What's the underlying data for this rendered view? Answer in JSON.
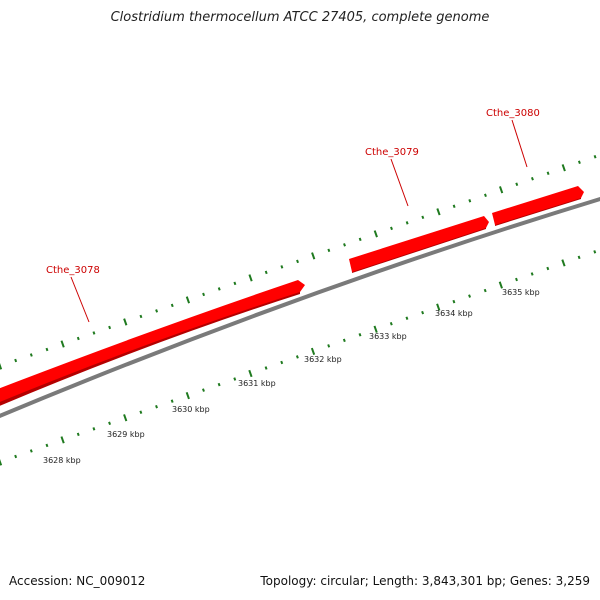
{
  "title": "Clostridium thermocellum ATCC 27405, complete genome",
  "colors": {
    "gene": "#ff0000",
    "gene_shade": "#b30000",
    "tick": "#1f7a1f",
    "backbone": "#7a7a7a",
    "label": "#cc0000"
  },
  "genes": [
    {
      "name": "Cthe_3078"
    },
    {
      "name": "Cthe_3079"
    },
    {
      "name": "Cthe_3080"
    }
  ],
  "scale_labels": [
    "3628 kbp",
    "3629 kbp",
    "3630 kbp",
    "3631 kbp",
    "3632 kbp",
    "3633 kbp",
    "3634 kbp",
    "3635 kbp"
  ],
  "footer": {
    "accession": "Accession: NC_009012",
    "summary": "Topology: circular; Length: 3,843,301 bp; Genes: 3,259"
  }
}
